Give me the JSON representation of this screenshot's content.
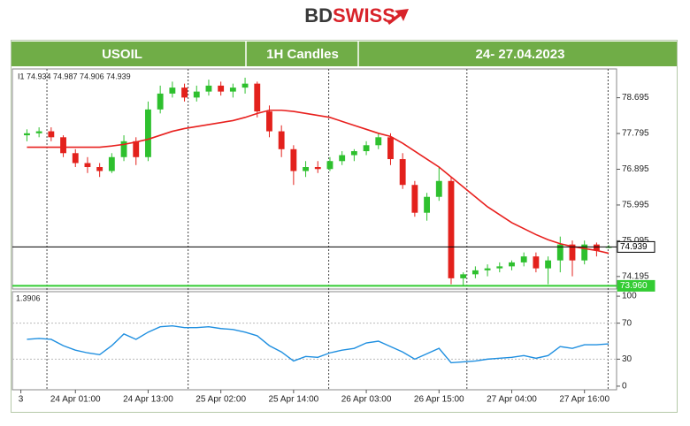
{
  "header": {
    "logo_bd": "BD",
    "logo_swiss": "SWISS",
    "symbol": "USOIL",
    "timeframe": "1H Candles",
    "period": "24- 27.04.2023"
  },
  "chart_data": {
    "type": "candlestick",
    "info_label": "I1  74.934 74.987 74.906 74.939",
    "up_color": "#2ec02e",
    "down_color": "#e3211c",
    "x": [
      4,
      6,
      8,
      10,
      12,
      14,
      16,
      18,
      20,
      22,
      24,
      26,
      28,
      30,
      32,
      34,
      36,
      38,
      40,
      42,
      44,
      46,
      48,
      50,
      52,
      54,
      56,
      58,
      60,
      62,
      64,
      66,
      68,
      70,
      72,
      74,
      76,
      78,
      80,
      82,
      84,
      86,
      88,
      90,
      92,
      94,
      96,
      98,
      100
    ],
    "open": [
      77.75,
      77.8,
      77.85,
      77.7,
      77.3,
      77.05,
      76.95,
      76.85,
      77.2,
      77.6,
      77.2,
      78.4,
      78.8,
      78.95,
      78.7,
      78.85,
      79.0,
      78.85,
      78.95,
      79.05,
      78.35,
      77.85,
      77.4,
      76.85,
      76.95,
      76.9,
      77.1,
      77.25,
      77.35,
      77.5,
      77.7,
      77.15,
      76.5,
      75.8,
      76.2,
      76.6,
      74.15,
      74.25,
      74.35,
      74.4,
      74.45,
      74.55,
      74.7,
      74.4,
      74.6,
      75.0,
      74.6,
      75.0,
      74.934
    ],
    "high": [
      77.9,
      77.95,
      77.95,
      77.75,
      77.4,
      77.2,
      77.05,
      77.3,
      77.75,
      77.7,
      78.6,
      79.0,
      79.1,
      79.05,
      79.0,
      79.15,
      79.1,
      79.05,
      79.2,
      79.1,
      78.5,
      78.0,
      77.5,
      77.1,
      77.1,
      77.2,
      77.35,
      77.4,
      77.6,
      77.8,
      77.8,
      77.3,
      76.6,
      76.3,
      76.95,
      76.7,
      74.3,
      74.45,
      74.5,
      74.55,
      74.6,
      74.8,
      74.8,
      74.7,
      75.2,
      75.1,
      75.1,
      75.05,
      74.987
    ],
    "low": [
      77.6,
      77.7,
      77.6,
      77.2,
      76.95,
      76.8,
      76.7,
      76.8,
      77.1,
      77.0,
      77.1,
      78.3,
      78.7,
      78.6,
      78.6,
      78.75,
      78.75,
      78.7,
      78.8,
      78.2,
      77.7,
      77.2,
      76.5,
      76.7,
      76.8,
      76.85,
      77.0,
      77.1,
      77.25,
      77.4,
      77.0,
      76.4,
      75.7,
      75.6,
      76.1,
      74.0,
      73.95,
      74.15,
      74.2,
      74.3,
      74.35,
      74.45,
      74.3,
      74.0,
      74.3,
      74.2,
      74.5,
      74.7,
      74.906
    ],
    "close": [
      77.8,
      77.85,
      77.7,
      77.3,
      77.05,
      76.95,
      76.85,
      77.2,
      77.6,
      77.2,
      78.4,
      78.8,
      78.95,
      78.7,
      78.85,
      79.0,
      78.85,
      78.95,
      79.05,
      78.35,
      77.85,
      77.4,
      76.85,
      76.95,
      76.9,
      77.1,
      77.25,
      77.35,
      77.5,
      77.7,
      77.15,
      76.5,
      75.8,
      76.2,
      76.6,
      74.15,
      74.25,
      74.35,
      74.4,
      74.45,
      74.55,
      74.7,
      74.4,
      74.6,
      75.0,
      74.6,
      75.0,
      74.85,
      74.939
    ],
    "ma": {
      "color": "#e8201e",
      "values": [
        77.45,
        77.45,
        77.45,
        77.45,
        77.45,
        77.45,
        77.45,
        77.48,
        77.52,
        77.58,
        77.65,
        77.75,
        77.85,
        77.92,
        77.97,
        78.02,
        78.07,
        78.12,
        78.2,
        78.3,
        78.38,
        78.38,
        78.35,
        78.3,
        78.25,
        78.2,
        78.1,
        78.0,
        77.9,
        77.8,
        77.72,
        77.55,
        77.35,
        77.15,
        76.95,
        76.7,
        76.45,
        76.2,
        75.95,
        75.75,
        75.55,
        75.4,
        75.25,
        75.12,
        75.02,
        74.95,
        74.9,
        74.85,
        74.78
      ]
    },
    "xlim": [
      1.6,
      101.3
    ],
    "ylim": [
      73.88,
      79.42
    ],
    "yticks": [
      74.195,
      75.095,
      75.995,
      76.895,
      77.795,
      78.695
    ],
    "xticks": [
      {
        "value": 3,
        "label": "3"
      },
      {
        "value": 12,
        "label": "24 Apr 01:00"
      },
      {
        "value": 24,
        "label": "24 Apr 13:00"
      },
      {
        "value": 36,
        "label": "25 Apr 02:00"
      },
      {
        "value": 48,
        "label": "25 Apr 14:00"
      },
      {
        "value": 60,
        "label": "26 Apr 03:00"
      },
      {
        "value": 72,
        "label": "26 Apr 15:00"
      },
      {
        "value": 84,
        "label": "27 Apr 04:00"
      },
      {
        "value": 96,
        "label": "27 Apr 16:00"
      }
    ],
    "separators": [
      7.3,
      30.6,
      53.8,
      76.6,
      99.9
    ],
    "price_lines": [
      {
        "value": 74.939,
        "color": "#000000"
      },
      {
        "value": 73.96,
        "label": "73.960",
        "color": "#33cc33"
      }
    ],
    "indicator": {
      "label": "1.3906",
      "color": "#1f8fe0",
      "ylim": [
        -4,
        105
      ],
      "yticks": [
        0,
        30,
        70,
        100
      ],
      "levels": [
        30,
        70
      ],
      "values": [
        52,
        53,
        52,
        45,
        40,
        37,
        35,
        45,
        58,
        52,
        60,
        66,
        67,
        65,
        65,
        66,
        64,
        63,
        60,
        56,
        45,
        38,
        28,
        33,
        32,
        37,
        40,
        42,
        48,
        50,
        44,
        38,
        30,
        36,
        42,
        26,
        27,
        28,
        30,
        31,
        32,
        34,
        31,
        34,
        44,
        42,
        46,
        46,
        47
      ]
    }
  }
}
